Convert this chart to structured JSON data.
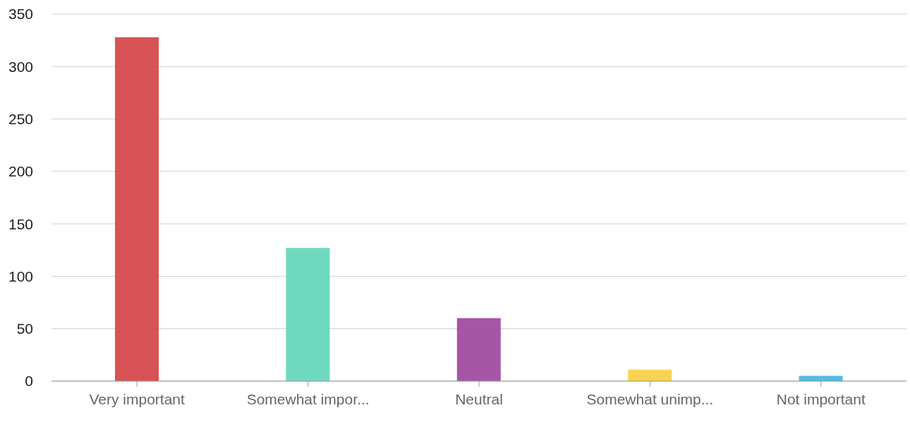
{
  "chart_data": {
    "type": "bar",
    "categories": [
      "Very important",
      "Somewhat impor...",
      "Neutral",
      "Somewhat unimp...",
      "Not important"
    ],
    "values": [
      328,
      127,
      60,
      11,
      5
    ],
    "colors": [
      "#d64a4c",
      "#67d7bd",
      "#a24ca1",
      "#f9d24a",
      "#48b9e0"
    ],
    "ylim": [
      0,
      350
    ],
    "yticks": [
      0,
      50,
      100,
      150,
      200,
      250,
      300,
      350
    ],
    "grid": "y"
  }
}
